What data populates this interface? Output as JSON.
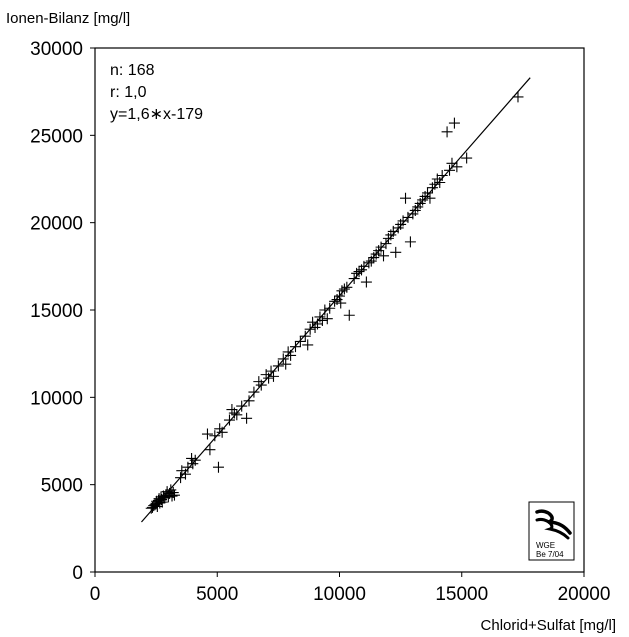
{
  "chart_data": {
    "type": "scatter",
    "title": "",
    "xlabel": "Chlorid+Sulfat [mg/l]",
    "ylabel": "Ionen-Bilanz [mg/l]",
    "xlim": [
      0,
      20000
    ],
    "ylim": [
      0,
      30000
    ],
    "xticks": [
      "0",
      "5000",
      "10000",
      "15000",
      "20000"
    ],
    "yticks": [
      "0",
      "5000",
      "10000",
      "15000",
      "20000",
      "25000",
      "30000"
    ],
    "grid": false,
    "stats": {
      "n": "n: 168",
      "r": "r: 1,0",
      "equation": "y=1,6∗x-179"
    },
    "regression": {
      "slope": 1.6,
      "intercept": -179,
      "x_range": [
        1900,
        17800
      ]
    },
    "marker": "+",
    "points": [
      [
        2300,
        3650
      ],
      [
        2350,
        3700
      ],
      [
        2400,
        3800
      ],
      [
        2450,
        3850
      ],
      [
        2500,
        3900
      ],
      [
        2520,
        4050
      ],
      [
        2550,
        3750
      ],
      [
        2600,
        4100
      ],
      [
        2620,
        4200
      ],
      [
        2650,
        3950
      ],
      [
        2700,
        4300
      ],
      [
        2720,
        4150
      ],
      [
        2750,
        4000
      ],
      [
        2800,
        4350
      ],
      [
        2850,
        4250
      ],
      [
        2900,
        4400
      ],
      [
        2950,
        4600
      ],
      [
        3000,
        4300
      ],
      [
        3050,
        4500
      ],
      [
        3100,
        4700
      ],
      [
        3150,
        4350
      ],
      [
        3200,
        4550
      ],
      [
        3250,
        4400
      ],
      [
        3500,
        5400
      ],
      [
        3550,
        5800
      ],
      [
        3700,
        5600
      ],
      [
        3800,
        6000
      ],
      [
        3950,
        6500
      ],
      [
        4000,
        6200
      ],
      [
        4100,
        6400
      ],
      [
        4600,
        7900
      ],
      [
        4700,
        7000
      ],
      [
        4900,
        7800
      ],
      [
        5050,
        6000
      ],
      [
        5100,
        8200
      ],
      [
        5200,
        8000
      ],
      [
        5500,
        8700
      ],
      [
        5600,
        9300
      ],
      [
        5700,
        9100
      ],
      [
        5800,
        9000
      ],
      [
        6000,
        9500
      ],
      [
        6200,
        8800
      ],
      [
        6300,
        9800
      ],
      [
        6500,
        10300
      ],
      [
        6700,
        10900
      ],
      [
        6800,
        10700
      ],
      [
        7000,
        11300
      ],
      [
        7100,
        11100
      ],
      [
        7200,
        11500
      ],
      [
        7300,
        11200
      ],
      [
        7500,
        11800
      ],
      [
        7700,
        12200
      ],
      [
        7800,
        11900
      ],
      [
        7900,
        12600
      ],
      [
        8000,
        12400
      ],
      [
        8200,
        12900
      ],
      [
        8400,
        13200
      ],
      [
        8600,
        13500
      ],
      [
        8700,
        13000
      ],
      [
        8800,
        13900
      ],
      [
        8900,
        14300
      ],
      [
        9000,
        14000
      ],
      [
        9100,
        14200
      ],
      [
        9200,
        14600
      ],
      [
        9300,
        14400
      ],
      [
        9400,
        15000
      ],
      [
        9500,
        14500
      ],
      [
        9600,
        15100
      ],
      [
        9800,
        15500
      ],
      [
        9900,
        15600
      ],
      [
        10000,
        15800
      ],
      [
        10050,
        15400
      ],
      [
        10100,
        16100
      ],
      [
        10200,
        16200
      ],
      [
        10300,
        16300
      ],
      [
        10400,
        14700
      ],
      [
        10600,
        16800
      ],
      [
        10700,
        17100
      ],
      [
        10800,
        17200
      ],
      [
        10900,
        17300
      ],
      [
        11000,
        17500
      ],
      [
        11100,
        16600
      ],
      [
        11200,
        17700
      ],
      [
        11300,
        17800
      ],
      [
        11400,
        18000
      ],
      [
        11500,
        18200
      ],
      [
        11600,
        18400
      ],
      [
        11700,
        18600
      ],
      [
        11800,
        18100
      ],
      [
        11900,
        18800
      ],
      [
        12000,
        19100
      ],
      [
        12100,
        19300
      ],
      [
        12200,
        19500
      ],
      [
        12300,
        18300
      ],
      [
        12400,
        19700
      ],
      [
        12500,
        19900
      ],
      [
        12600,
        20100
      ],
      [
        12700,
        21400
      ],
      [
        12800,
        20300
      ],
      [
        12900,
        18900
      ],
      [
        13000,
        20500
      ],
      [
        13100,
        20700
      ],
      [
        13200,
        20900
      ],
      [
        13300,
        21100
      ],
      [
        13400,
        21300
      ],
      [
        13500,
        21500
      ],
      [
        13600,
        21700
      ],
      [
        13700,
        21400
      ],
      [
        13800,
        22000
      ],
      [
        13900,
        22200
      ],
      [
        14000,
        22500
      ],
      [
        14100,
        22300
      ],
      [
        14200,
        22700
      ],
      [
        14400,
        25200
      ],
      [
        14500,
        23000
      ],
      [
        14600,
        23400
      ],
      [
        14700,
        25700
      ],
      [
        14800,
        23200
      ],
      [
        15200,
        23700
      ],
      [
        17300,
        27200
      ]
    ]
  }
}
